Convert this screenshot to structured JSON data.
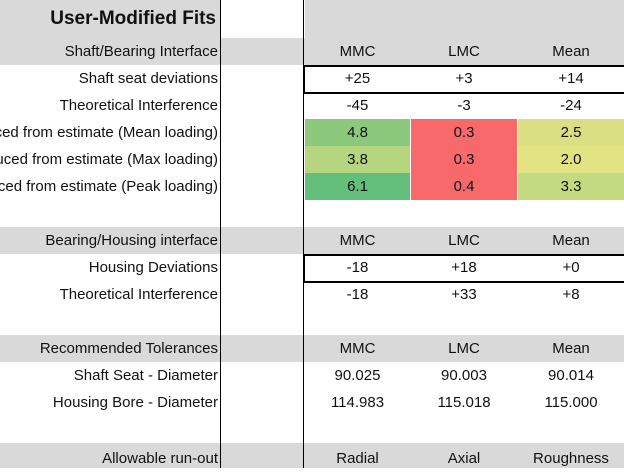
{
  "title": "User-Modified Fits",
  "colors": {
    "header_grey": "#d9d9d9",
    "green_dark": "#63be7b",
    "green_light": "#b5d67f",
    "yellow": "#e2e383",
    "red": "#f8696b"
  },
  "shaft": {
    "header": {
      "label": "Shaft/Bearing Interface",
      "cols": [
        "MMC",
        "LMC",
        "Mean"
      ]
    },
    "deviations": {
      "label": "Shaft seat deviations",
      "vals": [
        "+25",
        "+3",
        "+14"
      ]
    },
    "interference": {
      "label": "Theoretical Interference",
      "vals": [
        "-45",
        "-3",
        "-24"
      ]
    },
    "mean_loading": {
      "label": "Reduced from estimate (Mean loading)",
      "vals": [
        "4.8",
        "0.3",
        "2.5"
      ],
      "fills": [
        "#8cc97d",
        "#f8696b",
        "#d9df82"
      ]
    },
    "max_loading": {
      "label": "Reduced from estimate (Max loading)",
      "vals": [
        "3.8",
        "0.3",
        "2.0"
      ],
      "fills": [
        "#b5d67f",
        "#f8696b",
        "#e2e383"
      ]
    },
    "peak_loading": {
      "label": "Reduced from estimate (Peak loading)",
      "vals": [
        "6.1",
        "0.4",
        "3.3"
      ],
      "fills": [
        "#63be7b",
        "#f8696b",
        "#c4da80"
      ]
    }
  },
  "housing": {
    "header": {
      "label": "Bearing/Housing interface",
      "cols": [
        "MMC",
        "LMC",
        "Mean"
      ]
    },
    "deviations": {
      "label": "Housing Deviations",
      "vals": [
        "-18",
        "+18",
        "+0"
      ]
    },
    "interference": {
      "label": "Theoretical Interference",
      "vals": [
        "-18",
        "+33",
        "+8"
      ]
    }
  },
  "tolerances": {
    "header": {
      "label": "Recommended Tolerances",
      "cols": [
        "MMC",
        "LMC",
        "Mean"
      ]
    },
    "shaft_seat": {
      "label": "Shaft Seat - Diameter",
      "vals": [
        "90.025",
        "90.003",
        "90.014"
      ]
    },
    "housing_bore": {
      "label": "Housing Bore - Diameter",
      "vals": [
        "114.983",
        "115.018",
        "115.000"
      ]
    }
  },
  "runout": {
    "label": "Allowable run-out",
    "cols": [
      "Radial",
      "Axial",
      "Roughness"
    ]
  }
}
